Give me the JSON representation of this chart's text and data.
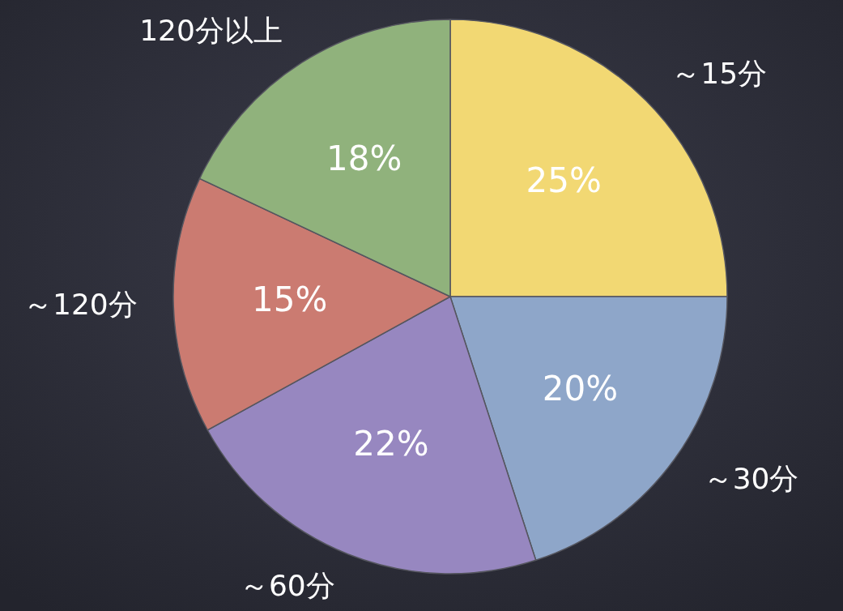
{
  "chart_data": {
    "type": "pie",
    "categories": [
      "～15分",
      "～30分",
      "～60分",
      "～120分",
      "120分以上"
    ],
    "values": [
      25,
      20,
      22,
      15,
      18
    ],
    "value_labels": [
      "25%",
      "20%",
      "22%",
      "15%",
      "18%"
    ],
    "colors": [
      "#f2d873",
      "#8ea6c9",
      "#9787c0",
      "#cb7b71",
      "#90b27c"
    ]
  }
}
